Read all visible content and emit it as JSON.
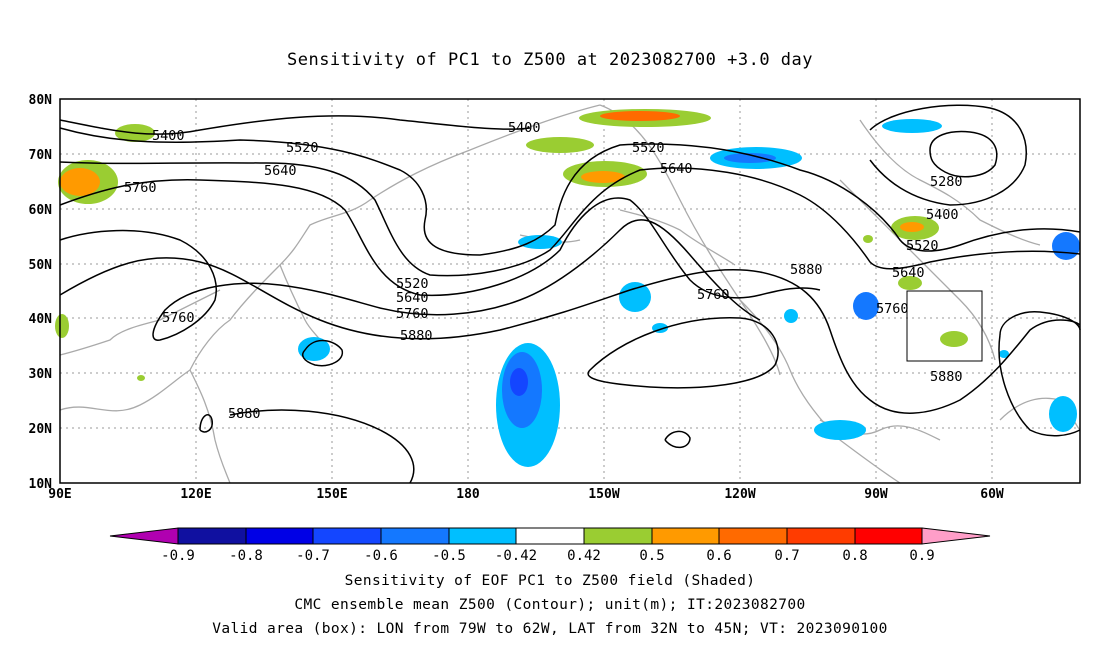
{
  "title": "Sensitivity of PC1 to Z500 at 2023082700 +3.0 day",
  "map": {
    "lat_labels": [
      "80N",
      "70N",
      "60N",
      "50N",
      "40N",
      "30N",
      "20N",
      "10N"
    ],
    "lon_labels": [
      "90E",
      "120E",
      "150E",
      "180",
      "150W",
      "120W",
      "90W",
      "60W"
    ],
    "contour_labels": [
      "5400",
      "5520",
      "5640",
      "5760",
      "5400",
      "5520",
      "5640",
      "5760",
      "5520",
      "5640",
      "5760",
      "5880",
      "5760",
      "5880",
      "5280",
      "5400",
      "5520",
      "5640",
      "5760",
      "5880",
      "5880"
    ],
    "valid_box": {
      "lon_from": "79W",
      "lon_to": "62W",
      "lat_from": "32N",
      "lat_to": "45N"
    }
  },
  "colorbar": {
    "labels": [
      "-0.9",
      "-0.8",
      "-0.7",
      "-0.6",
      "-0.5",
      "-0.42",
      "0.42",
      "0.5",
      "0.6",
      "0.7",
      "0.8",
      "0.9"
    ],
    "colors": [
      "#1010a0",
      "#0000e6",
      "#1446ff",
      "#1478ff",
      "#00bfff",
      "#ffffff",
      "#9acd32",
      "#ff9a00",
      "#ff6a00",
      "#ff3c00",
      "#ff0000"
    ],
    "low_arrow_color": "#b000b0",
    "high_arrow_color": "#ff9ec8"
  },
  "footer": {
    "line1": "Sensitivity of EOF PC1 to Z500 field (Shaded)",
    "line2": "CMC ensemble mean Z500 (Contour); unit(m); IT:2023082700",
    "line3": "Valid area (box): LON from 79W to 62W, LAT from 32N to 45N; VT: 2023090100"
  }
}
